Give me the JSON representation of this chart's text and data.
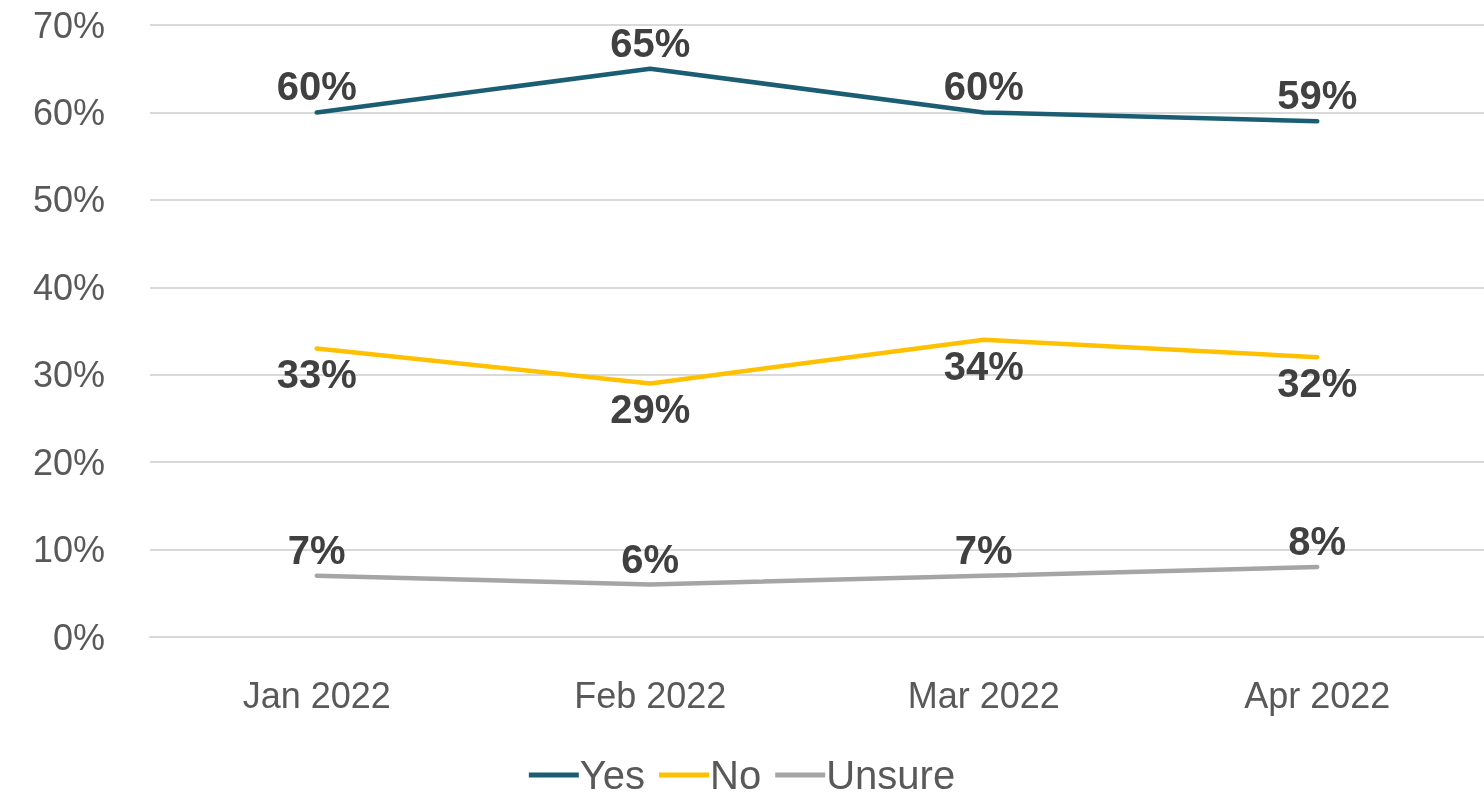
{
  "chart_data": {
    "type": "line",
    "categories": [
      "Jan 2022",
      "Feb 2022",
      "Mar 2022",
      "Apr 2022"
    ],
    "series": [
      {
        "name": "Yes",
        "color": "#1b5e74",
        "values": [
          60,
          65,
          60,
          59
        ],
        "value_labels": [
          "60%",
          "65%",
          "60%",
          "59%"
        ]
      },
      {
        "name": "No",
        "color": "#ffc000",
        "values": [
          33,
          29,
          34,
          32
        ],
        "value_labels": [
          "33%",
          "29%",
          "34%",
          "32%"
        ]
      },
      {
        "name": "Unsure",
        "color": "#a5a5a5",
        "values": [
          7,
          6,
          7,
          8
        ],
        "value_labels": [
          "7%",
          "6%",
          "7%",
          "8%"
        ]
      }
    ],
    "ylim": [
      0,
      70
    ],
    "yticks": [
      {
        "value": 0,
        "label": "0%"
      },
      {
        "value": 10,
        "label": "10%"
      },
      {
        "value": 20,
        "label": "20%"
      },
      {
        "value": 30,
        "label": "30%"
      },
      {
        "value": 40,
        "label": "40%"
      },
      {
        "value": 50,
        "label": "50%"
      },
      {
        "value": 60,
        "label": "60%"
      },
      {
        "value": 70,
        "label": "70%"
      }
    ],
    "grid": "y",
    "legend": "bottom",
    "marker": "none",
    "line_style": "solid"
  }
}
